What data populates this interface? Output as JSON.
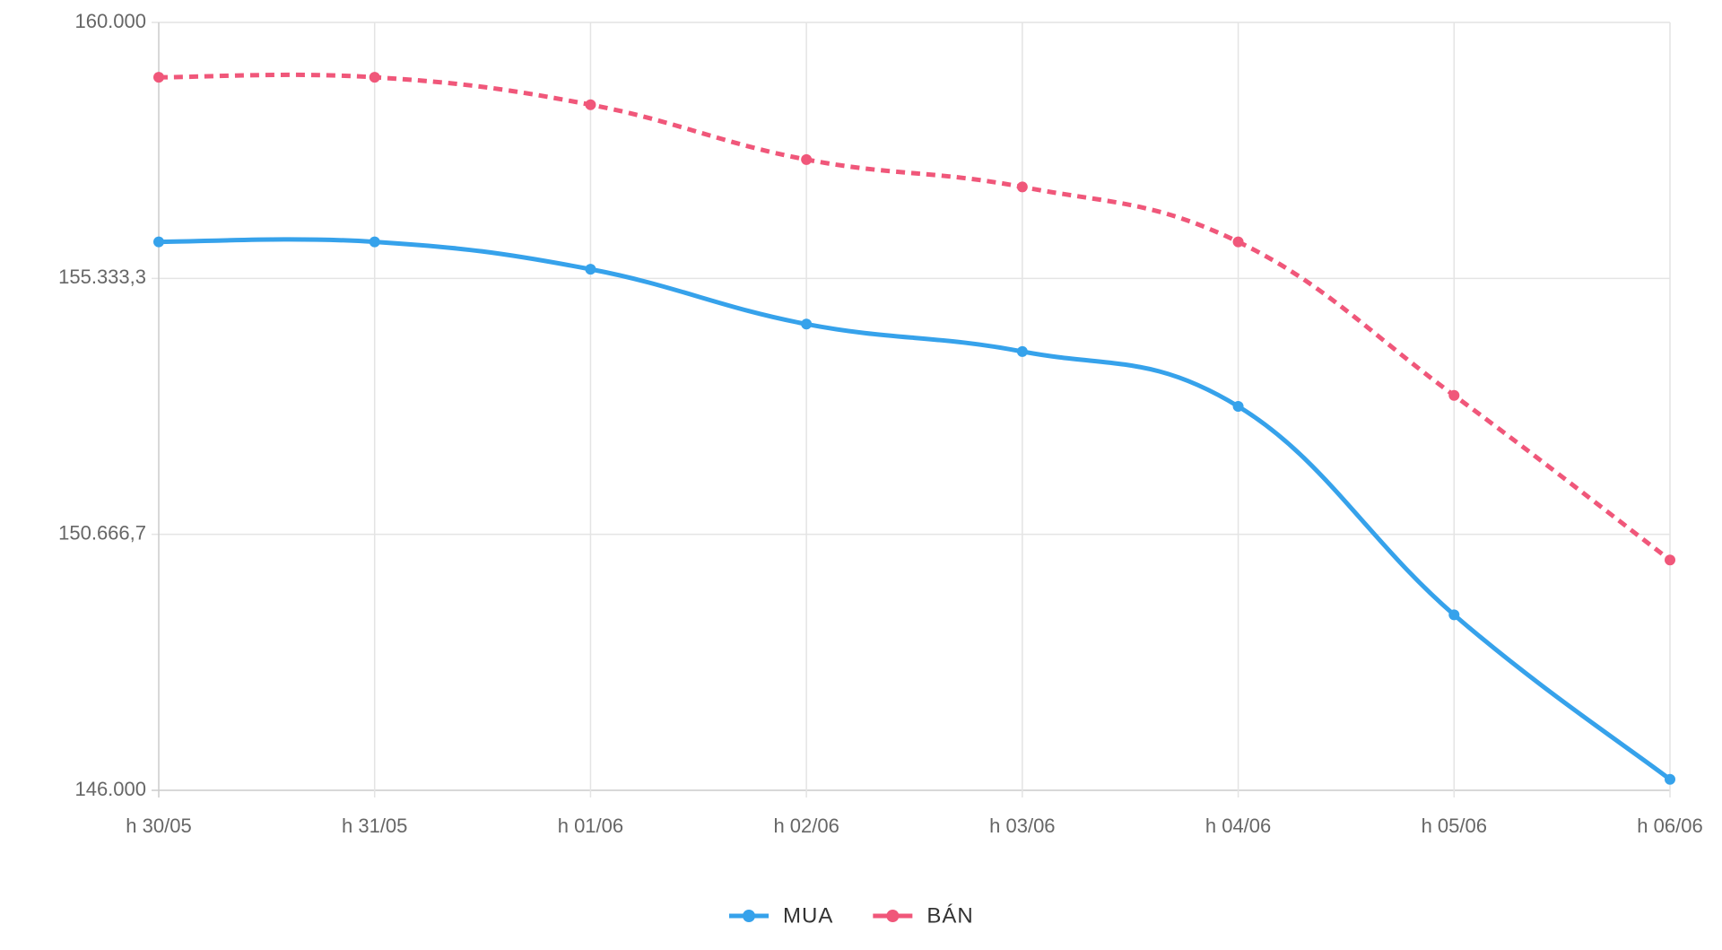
{
  "chart_data": {
    "type": "line",
    "categories": [
      "h 30/05",
      "h 31/05",
      "h 01/06",
      "h 02/06",
      "h 03/06",
      "h 04/06",
      "h 05/06",
      "h 06/06"
    ],
    "series": [
      {
        "name": "MUA",
        "color": "#36a2eb",
        "dashed": false,
        "values": [
          156000,
          156000,
          155500,
          154500,
          154000,
          153000,
          149200,
          146200
        ]
      },
      {
        "name": "BÁN",
        "color": "#f0577a",
        "dashed": true,
        "values": [
          159000,
          159000,
          158500,
          157500,
          157000,
          156000,
          153200,
          150200
        ]
      }
    ],
    "ylim": [
      146000,
      160000
    ],
    "yticks": [
      {
        "value": 146000,
        "label": "146.000"
      },
      {
        "value": 150666.7,
        "label": "150.666,7"
      },
      {
        "value": 155333.3,
        "label": "155.333,3"
      },
      {
        "value": 160000,
        "label": "160.000"
      }
    ],
    "grid": true,
    "legend": "bottom"
  }
}
